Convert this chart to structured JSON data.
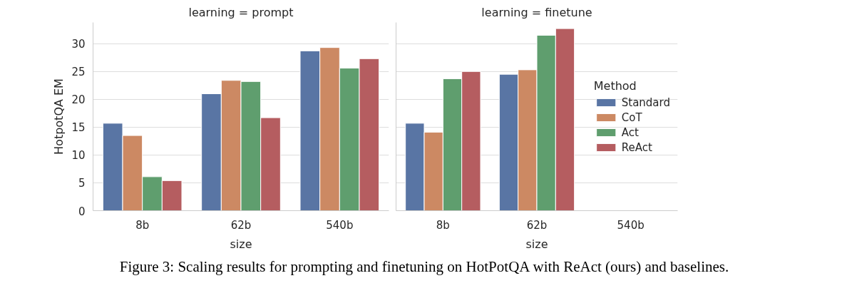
{
  "chart_data": [
    {
      "type": "bar",
      "title": "learning = prompt",
      "xlabel": "size",
      "ylabel": "HotpotQA EM",
      "categories": [
        "8b",
        "62b",
        "540b"
      ],
      "series": [
        {
          "color": "#5975a4",
          "values": [
            15.7,
            21.0,
            28.7
          ]
        },
        {
          "color": "#cc8963",
          "values": [
            13.5,
            23.4,
            29.3
          ]
        },
        {
          "color": "#5f9e6e",
          "values": [
            6.1,
            23.2,
            25.6
          ]
        },
        {
          "color": "#b55d60",
          "values": [
            5.4,
            16.7,
            27.3
          ]
        }
      ],
      "ylim": [
        0,
        33.8
      ],
      "yticks": [
        0,
        5,
        10,
        15,
        20,
        25,
        30
      ],
      "grid": "y",
      "annotations": [
        "Figure 3: Scaling results for prompting and finetuning on HotPotQA with ReAct (ours) and baselines."
      ]
    },
    {
      "type": "bar",
      "title": "learning = finetune",
      "xlabel": "size",
      "categories": [
        "8b",
        "62b",
        "540b"
      ],
      "legend_title": "Method",
      "series": [
        {
          "name": "Standard",
          "color": "#5975a4",
          "values": [
            15.7,
            24.5,
            null
          ]
        },
        {
          "name": "CoT",
          "color": "#cc8963",
          "values": [
            14.1,
            25.3,
            null
          ]
        },
        {
          "name": "Act",
          "color": "#5f9e6e",
          "values": [
            23.7,
            31.5,
            null
          ]
        },
        {
          "name": "ReAct",
          "color": "#b55d60",
          "values": [
            25.0,
            32.7,
            null
          ]
        }
      ],
      "ylim": [
        0,
        33.8
      ],
      "yticks": [
        0,
        5,
        10,
        15,
        20,
        25,
        30
      ],
      "grid": "y",
      "legend": "right",
      "tick_labels": "x"
    }
  ]
}
